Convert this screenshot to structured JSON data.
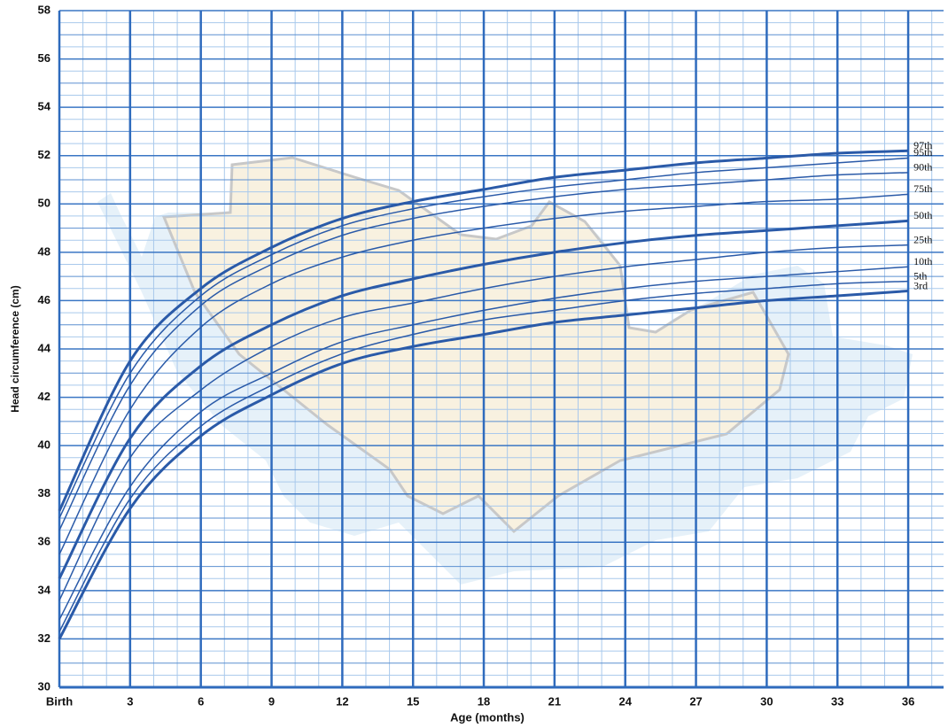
{
  "chart_data": {
    "type": "line",
    "x_label": "Age (months)",
    "y_label": "Head circumference (cm)",
    "x": [
      0,
      3,
      6,
      9,
      12,
      15,
      18,
      21,
      24,
      27,
      30,
      33,
      36
    ],
    "xlim": [
      0,
      37.5
    ],
    "ylim": [
      30,
      58
    ],
    "xticks": [
      {
        "value": 0,
        "label": "Birth"
      },
      3,
      6,
      9,
      12,
      15,
      18,
      21,
      24,
      27,
      30,
      33,
      36
    ],
    "yticks": [
      30,
      32,
      34,
      36,
      38,
      40,
      42,
      44,
      46,
      48,
      50,
      52,
      54,
      56,
      58
    ],
    "grid": true,
    "series": [
      {
        "name": "97th",
        "color": "#2a5aa8",
        "line_width": 3,
        "values": [
          37.3,
          43.5,
          46.5,
          48.2,
          49.4,
          50.1,
          50.6,
          51.1,
          51.4,
          51.7,
          51.9,
          52.1,
          52.2
        ]
      },
      {
        "name": "95th",
        "color": "#2a5aa8",
        "line_width": 1.5,
        "values": [
          37.0,
          43.0,
          46.2,
          47.9,
          49.1,
          49.8,
          50.3,
          50.7,
          51.0,
          51.3,
          51.5,
          51.7,
          51.9
        ]
      },
      {
        "name": "90th",
        "color": "#2a5aa8",
        "line_width": 1.5,
        "values": [
          36.5,
          42.5,
          45.8,
          47.5,
          48.7,
          49.4,
          49.9,
          50.3,
          50.6,
          50.8,
          51.0,
          51.2,
          51.3
        ]
      },
      {
        "name": "75th",
        "color": "#2a5aa8",
        "line_width": 1.5,
        "values": [
          35.5,
          41.5,
          44.9,
          46.7,
          47.8,
          48.5,
          49.0,
          49.4,
          49.7,
          49.9,
          50.1,
          50.2,
          50.4
        ]
      },
      {
        "name": "50th",
        "color": "#2a5aa8",
        "line_width": 3,
        "values": [
          34.5,
          40.3,
          43.3,
          45.0,
          46.2,
          46.9,
          47.5,
          48.0,
          48.4,
          48.7,
          48.9,
          49.1,
          49.3
        ]
      },
      {
        "name": "25th",
        "color": "#2a5aa8",
        "line_width": 1.5,
        "values": [
          33.6,
          39.5,
          42.3,
          44.1,
          45.3,
          45.9,
          46.5,
          47.0,
          47.4,
          47.7,
          48.0,
          48.2,
          48.3
        ]
      },
      {
        "name": "10th",
        "color": "#2a5aa8",
        "line_width": 1.5,
        "values": [
          32.8,
          38.3,
          41.4,
          43.0,
          44.3,
          45.0,
          45.6,
          46.1,
          46.5,
          46.8,
          47.0,
          47.2,
          47.4
        ]
      },
      {
        "name": "5th",
        "color": "#2a5aa8",
        "line_width": 1.5,
        "values": [
          32.3,
          37.8,
          40.8,
          42.5,
          43.8,
          44.6,
          45.2,
          45.6,
          46.0,
          46.3,
          46.5,
          46.7,
          46.8
        ]
      },
      {
        "name": "3rd",
        "color": "#2a5aa8",
        "line_width": 3,
        "values": [
          32.0,
          37.4,
          40.4,
          42.1,
          43.4,
          44.1,
          44.6,
          45.1,
          45.4,
          45.7,
          46.0,
          46.2,
          46.4
        ]
      }
    ]
  }
}
